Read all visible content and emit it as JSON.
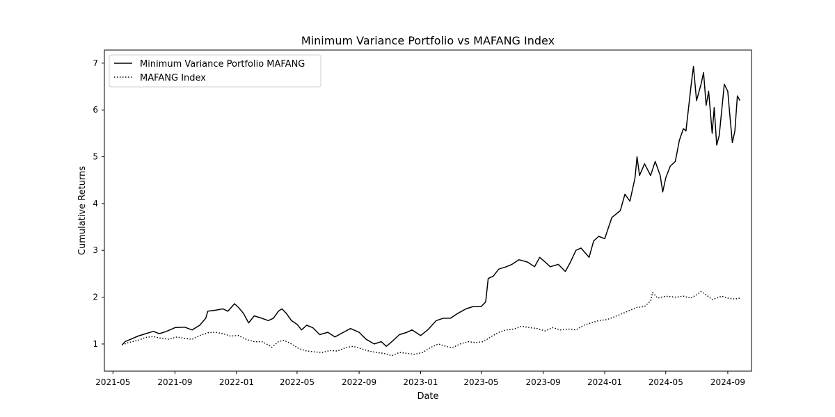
{
  "chart_data": {
    "type": "line",
    "title": "Minimum Variance Portfolio vs MAFANG Index",
    "xlabel": "Date",
    "ylabel": "Cumulative Returns",
    "xlim": [
      "2021-04-14",
      "2024-10-18"
    ],
    "ylim": [
      0.42,
      7.28
    ],
    "x_ticks": [
      "2021-05",
      "2021-09",
      "2022-01",
      "2022-05",
      "2022-09",
      "2023-01",
      "2023-05",
      "2023-09",
      "2024-01",
      "2024-05",
      "2024-09"
    ],
    "y_ticks": [
      1,
      2,
      3,
      4,
      5,
      6,
      7
    ],
    "grid": false,
    "legend_position": "upper-left",
    "series": [
      {
        "name": "Minimum Variance Portfolio MAFANG",
        "style": "solid",
        "color": "#000000",
        "points": [
          [
            "2021-05-19",
            0.98
          ],
          [
            "2021-05-25",
            1.05
          ],
          [
            "2021-06-05",
            1.1
          ],
          [
            "2021-06-20",
            1.17
          ],
          [
            "2021-07-05",
            1.22
          ],
          [
            "2021-07-20",
            1.27
          ],
          [
            "2021-08-01",
            1.22
          ],
          [
            "2021-08-15",
            1.27
          ],
          [
            "2021-09-01",
            1.35
          ],
          [
            "2021-09-20",
            1.36
          ],
          [
            "2021-10-05",
            1.3
          ],
          [
            "2021-10-20",
            1.4
          ],
          [
            "2021-11-01",
            1.55
          ],
          [
            "2021-11-05",
            1.7
          ],
          [
            "2021-11-20",
            1.72
          ],
          [
            "2021-12-05",
            1.75
          ],
          [
            "2021-12-15",
            1.7
          ],
          [
            "2021-12-28",
            1.86
          ],
          [
            "2022-01-05",
            1.78
          ],
          [
            "2022-01-15",
            1.65
          ],
          [
            "2022-01-25",
            1.45
          ],
          [
            "2022-02-05",
            1.6
          ],
          [
            "2022-02-20",
            1.55
          ],
          [
            "2022-03-05",
            1.5
          ],
          [
            "2022-03-15",
            1.55
          ],
          [
            "2022-03-25",
            1.7
          ],
          [
            "2022-04-01",
            1.75
          ],
          [
            "2022-04-10",
            1.65
          ],
          [
            "2022-04-20",
            1.5
          ],
          [
            "2022-05-01",
            1.42
          ],
          [
            "2022-05-10",
            1.3
          ],
          [
            "2022-05-20",
            1.4
          ],
          [
            "2022-06-01",
            1.35
          ],
          [
            "2022-06-15",
            1.2
          ],
          [
            "2022-07-01",
            1.25
          ],
          [
            "2022-07-15",
            1.15
          ],
          [
            "2022-08-01",
            1.25
          ],
          [
            "2022-08-15",
            1.33
          ],
          [
            "2022-09-01",
            1.25
          ],
          [
            "2022-09-15",
            1.1
          ],
          [
            "2022-10-01",
            1.0
          ],
          [
            "2022-10-15",
            1.05
          ],
          [
            "2022-10-25",
            0.95
          ],
          [
            "2022-11-05",
            1.05
          ],
          [
            "2022-11-20",
            1.2
          ],
          [
            "2022-12-05",
            1.25
          ],
          [
            "2022-12-15",
            1.3
          ],
          [
            "2023-01-01",
            1.18
          ],
          [
            "2023-01-15",
            1.3
          ],
          [
            "2023-02-01",
            1.5
          ],
          [
            "2023-02-15",
            1.55
          ],
          [
            "2023-03-01",
            1.55
          ],
          [
            "2023-03-15",
            1.65
          ],
          [
            "2023-04-01",
            1.75
          ],
          [
            "2023-04-15",
            1.8
          ],
          [
            "2023-05-01",
            1.8
          ],
          [
            "2023-05-10",
            1.9
          ],
          [
            "2023-05-15",
            2.4
          ],
          [
            "2023-05-25",
            2.45
          ],
          [
            "2023-06-05",
            2.6
          ],
          [
            "2023-06-20",
            2.65
          ],
          [
            "2023-07-01",
            2.7
          ],
          [
            "2023-07-15",
            2.8
          ],
          [
            "2023-08-01",
            2.75
          ],
          [
            "2023-08-15",
            2.65
          ],
          [
            "2023-08-25",
            2.85
          ],
          [
            "2023-09-05",
            2.75
          ],
          [
            "2023-09-15",
            2.65
          ],
          [
            "2023-10-01",
            2.7
          ],
          [
            "2023-10-15",
            2.55
          ],
          [
            "2023-10-25",
            2.75
          ],
          [
            "2023-11-05",
            3.0
          ],
          [
            "2023-11-15",
            3.05
          ],
          [
            "2023-12-01",
            2.85
          ],
          [
            "2023-12-10",
            3.2
          ],
          [
            "2023-12-20",
            3.3
          ],
          [
            "2024-01-01",
            3.25
          ],
          [
            "2024-01-15",
            3.7
          ],
          [
            "2024-02-01",
            3.85
          ],
          [
            "2024-02-10",
            4.2
          ],
          [
            "2024-02-20",
            4.05
          ],
          [
            "2024-03-01",
            4.55
          ],
          [
            "2024-03-05",
            5.0
          ],
          [
            "2024-03-10",
            4.6
          ],
          [
            "2024-03-20",
            4.85
          ],
          [
            "2024-04-01",
            4.6
          ],
          [
            "2024-04-10",
            4.9
          ],
          [
            "2024-04-20",
            4.6
          ],
          [
            "2024-04-25",
            4.25
          ],
          [
            "2024-05-01",
            4.55
          ],
          [
            "2024-05-10",
            4.8
          ],
          [
            "2024-05-20",
            4.9
          ],
          [
            "2024-05-28",
            5.35
          ],
          [
            "2024-06-05",
            5.6
          ],
          [
            "2024-06-10",
            5.55
          ],
          [
            "2024-06-20",
            6.5
          ],
          [
            "2024-06-25",
            6.93
          ],
          [
            "2024-07-01",
            6.2
          ],
          [
            "2024-07-10",
            6.55
          ],
          [
            "2024-07-15",
            6.8
          ],
          [
            "2024-07-20",
            6.1
          ],
          [
            "2024-07-25",
            6.4
          ],
          [
            "2024-08-01",
            5.5
          ],
          [
            "2024-08-05",
            6.05
          ],
          [
            "2024-08-10",
            5.25
          ],
          [
            "2024-08-15",
            5.45
          ],
          [
            "2024-08-25",
            6.55
          ],
          [
            "2024-09-01",
            6.4
          ],
          [
            "2024-09-05",
            5.9
          ],
          [
            "2024-09-10",
            5.3
          ],
          [
            "2024-09-15",
            5.55
          ],
          [
            "2024-09-20",
            6.3
          ],
          [
            "2024-09-25",
            6.2
          ]
        ]
      },
      {
        "name": "MAFANG Index",
        "style": "dotted",
        "color": "#000000",
        "points": [
          [
            "2021-05-19",
            0.98
          ],
          [
            "2021-06-01",
            1.03
          ],
          [
            "2021-06-20",
            1.08
          ],
          [
            "2021-07-05",
            1.14
          ],
          [
            "2021-07-20",
            1.16
          ],
          [
            "2021-08-01",
            1.13
          ],
          [
            "2021-08-20",
            1.1
          ],
          [
            "2021-09-05",
            1.15
          ],
          [
            "2021-09-20",
            1.12
          ],
          [
            "2021-10-05",
            1.1
          ],
          [
            "2021-10-20",
            1.18
          ],
          [
            "2021-11-05",
            1.24
          ],
          [
            "2021-11-20",
            1.25
          ],
          [
            "2021-12-05",
            1.22
          ],
          [
            "2021-12-20",
            1.17
          ],
          [
            "2022-01-05",
            1.18
          ],
          [
            "2022-01-20",
            1.1
          ],
          [
            "2022-02-05",
            1.05
          ],
          [
            "2022-02-20",
            1.05
          ],
          [
            "2022-03-05",
            0.98
          ],
          [
            "2022-03-12",
            0.93
          ],
          [
            "2022-03-25",
            1.05
          ],
          [
            "2022-04-05",
            1.08
          ],
          [
            "2022-04-20",
            1.0
          ],
          [
            "2022-05-05",
            0.9
          ],
          [
            "2022-05-20",
            0.85
          ],
          [
            "2022-06-05",
            0.83
          ],
          [
            "2022-06-20",
            0.82
          ],
          [
            "2022-07-05",
            0.86
          ],
          [
            "2022-07-20",
            0.85
          ],
          [
            "2022-08-05",
            0.92
          ],
          [
            "2022-08-20",
            0.95
          ],
          [
            "2022-09-05",
            0.9
          ],
          [
            "2022-09-20",
            0.85
          ],
          [
            "2022-10-05",
            0.82
          ],
          [
            "2022-10-20",
            0.8
          ],
          [
            "2022-11-05",
            0.75
          ],
          [
            "2022-11-20",
            0.82
          ],
          [
            "2022-12-05",
            0.8
          ],
          [
            "2022-12-20",
            0.78
          ],
          [
            "2023-01-05",
            0.82
          ],
          [
            "2023-01-20",
            0.92
          ],
          [
            "2023-02-05",
            1.0
          ],
          [
            "2023-02-20",
            0.95
          ],
          [
            "2023-03-05",
            0.92
          ],
          [
            "2023-03-20",
            1.0
          ],
          [
            "2023-04-05",
            1.05
          ],
          [
            "2023-04-20",
            1.03
          ],
          [
            "2023-05-05",
            1.05
          ],
          [
            "2023-05-20",
            1.15
          ],
          [
            "2023-06-05",
            1.25
          ],
          [
            "2023-06-20",
            1.3
          ],
          [
            "2023-07-05",
            1.32
          ],
          [
            "2023-07-20",
            1.38
          ],
          [
            "2023-08-05",
            1.35
          ],
          [
            "2023-08-20",
            1.33
          ],
          [
            "2023-09-05",
            1.28
          ],
          [
            "2023-09-20",
            1.35
          ],
          [
            "2023-10-05",
            1.3
          ],
          [
            "2023-10-20",
            1.32
          ],
          [
            "2023-11-05",
            1.3
          ],
          [
            "2023-11-20",
            1.4
          ],
          [
            "2023-12-05",
            1.45
          ],
          [
            "2023-12-20",
            1.5
          ],
          [
            "2024-01-05",
            1.52
          ],
          [
            "2024-01-20",
            1.58
          ],
          [
            "2024-02-05",
            1.65
          ],
          [
            "2024-02-20",
            1.72
          ],
          [
            "2024-03-05",
            1.78
          ],
          [
            "2024-03-20",
            1.8
          ],
          [
            "2024-04-01",
            1.92
          ],
          [
            "2024-04-05",
            2.1
          ],
          [
            "2024-04-15",
            1.98
          ],
          [
            "2024-05-01",
            2.02
          ],
          [
            "2024-05-20",
            2.0
          ],
          [
            "2024-06-05",
            2.02
          ],
          [
            "2024-06-20",
            1.98
          ],
          [
            "2024-07-01",
            2.05
          ],
          [
            "2024-07-10",
            2.12
          ],
          [
            "2024-07-20",
            2.05
          ],
          [
            "2024-08-01",
            1.95
          ],
          [
            "2024-08-10",
            1.98
          ],
          [
            "2024-08-20",
            2.02
          ],
          [
            "2024-09-01",
            1.98
          ],
          [
            "2024-09-15",
            1.96
          ],
          [
            "2024-09-25",
            1.98
          ]
        ]
      }
    ]
  }
}
